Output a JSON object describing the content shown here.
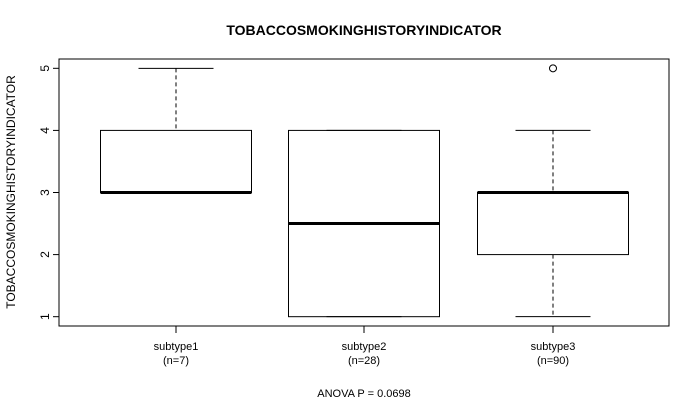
{
  "chart_data": {
    "type": "boxplot",
    "title": "TOBACCOSMOKINGHISTORYINDICATOR",
    "ylabel": "TOBACCOSMOKINGHISTORYINDICATOR",
    "xlabel": "",
    "ylim": [
      0.85,
      5.15
    ],
    "yticks": [
      1,
      2,
      3,
      4,
      5
    ],
    "footnote": "ANOVA P = 0.0698",
    "groups": [
      {
        "name": "subtype1",
        "n_label": "(n=7)",
        "whisker_low": 3,
        "q1": 3,
        "median": 3,
        "q3": 4,
        "whisker_high": 5,
        "outliers": []
      },
      {
        "name": "subtype2",
        "n_label": "(n=28)",
        "whisker_low": 1,
        "q1": 1,
        "median": 2.5,
        "q3": 4,
        "whisker_high": 4,
        "outliers": []
      },
      {
        "name": "subtype3",
        "n_label": "(n=90)",
        "whisker_low": 1,
        "q1": 2,
        "median": 3,
        "q3": 3,
        "whisker_high": 4,
        "outliers": [
          5
        ]
      }
    ]
  }
}
